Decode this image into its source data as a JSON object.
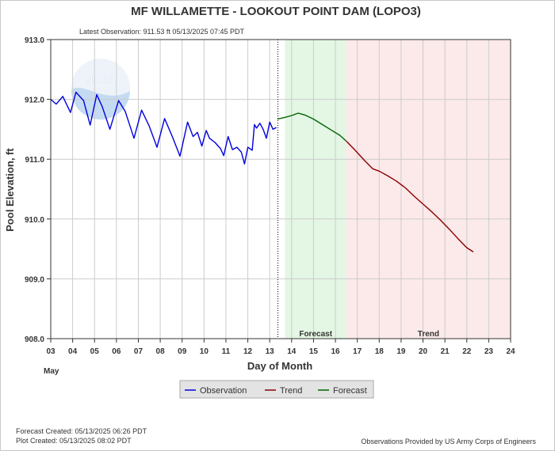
{
  "chart_data": {
    "type": "line",
    "title": "MF WILLAMETTE - LOOKOUT POINT DAM  (LOPO3)",
    "subtitle": "Latest Observation: 911.53 ft 05/13/2025 07:45 PDT",
    "xlabel": "Day of Month",
    "ylabel": "Pool Elevation, ft",
    "month_label": "May",
    "xlim": [
      3,
      24
    ],
    "ylim": [
      908.0,
      913.0
    ],
    "x_ticks": [
      "03",
      "04",
      "05",
      "06",
      "07",
      "08",
      "09",
      "10",
      "11",
      "12",
      "13",
      "14",
      "15",
      "16",
      "17",
      "18",
      "19",
      "20",
      "21",
      "22",
      "23",
      "24"
    ],
    "y_ticks": [
      "908.0",
      "909.0",
      "910.0",
      "911.0",
      "912.0",
      "913.0"
    ],
    "grid": true,
    "legend_position": "bottom-center",
    "regions": [
      {
        "label": "Forecast",
        "x_start": 13.7,
        "x_end": 16.5,
        "color": "#e4f6e4"
      },
      {
        "label": "Trend",
        "x_start": 16.5,
        "x_end": 24.0,
        "color": "#fce9e9"
      }
    ],
    "watermark": "NOAA",
    "series": [
      {
        "name": "Observation",
        "color": "#0000dd",
        "x": [
          3.0,
          3.25,
          3.55,
          3.9,
          4.15,
          4.5,
          4.8,
          5.1,
          5.35,
          5.7,
          6.1,
          6.4,
          6.8,
          7.15,
          7.5,
          7.85,
          8.2,
          8.55,
          8.9,
          9.25,
          9.5,
          9.7,
          9.9,
          10.1,
          10.25,
          10.5,
          10.75,
          10.9,
          11.1,
          11.3,
          11.5,
          11.7,
          11.85,
          12.0,
          12.2,
          12.3,
          12.4,
          12.55,
          12.7,
          12.85,
          13.0,
          13.15,
          13.3
        ],
        "y": [
          912.0,
          911.92,
          912.05,
          911.78,
          912.12,
          911.98,
          911.57,
          912.08,
          911.88,
          911.5,
          911.98,
          911.8,
          911.35,
          911.82,
          911.55,
          911.2,
          911.68,
          911.38,
          911.05,
          911.62,
          911.38,
          911.45,
          911.22,
          911.48,
          911.35,
          911.28,
          911.18,
          911.06,
          911.38,
          911.16,
          911.2,
          911.12,
          910.92,
          911.2,
          911.15,
          911.58,
          911.52,
          911.6,
          911.5,
          911.35,
          911.62,
          911.5,
          911.53
        ]
      },
      {
        "name": "Forecast",
        "color": "#006400",
        "x": [
          13.35,
          13.7,
          14.0,
          14.3,
          14.6,
          15.0,
          15.4,
          15.8,
          16.2,
          16.5
        ],
        "y": [
          911.67,
          911.7,
          911.73,
          911.77,
          911.74,
          911.67,
          911.58,
          911.49,
          911.4,
          911.3
        ]
      },
      {
        "name": "Trend",
        "color": "#8b0000",
        "x": [
          16.5,
          16.9,
          17.3,
          17.7,
          18.0,
          18.4,
          18.8,
          19.2,
          19.6,
          20.0,
          20.4,
          20.8,
          21.2,
          21.6,
          22.0,
          22.3
        ],
        "y": [
          911.3,
          911.15,
          910.99,
          910.84,
          910.8,
          910.72,
          910.63,
          910.52,
          910.38,
          910.25,
          910.12,
          909.98,
          909.83,
          909.67,
          909.52,
          909.45
        ]
      }
    ]
  },
  "legend": {
    "observation_label": "Observation",
    "trend_label": "Trend",
    "forecast_label": "Forecast"
  },
  "footer": {
    "forecast_created": "Forecast Created: 05/13/2025 06:26 PDT",
    "plot_created": "Plot Created: 05/13/2025 08:02 PDT",
    "credit": "Observations Provided by US Army Corps of Engineers"
  }
}
